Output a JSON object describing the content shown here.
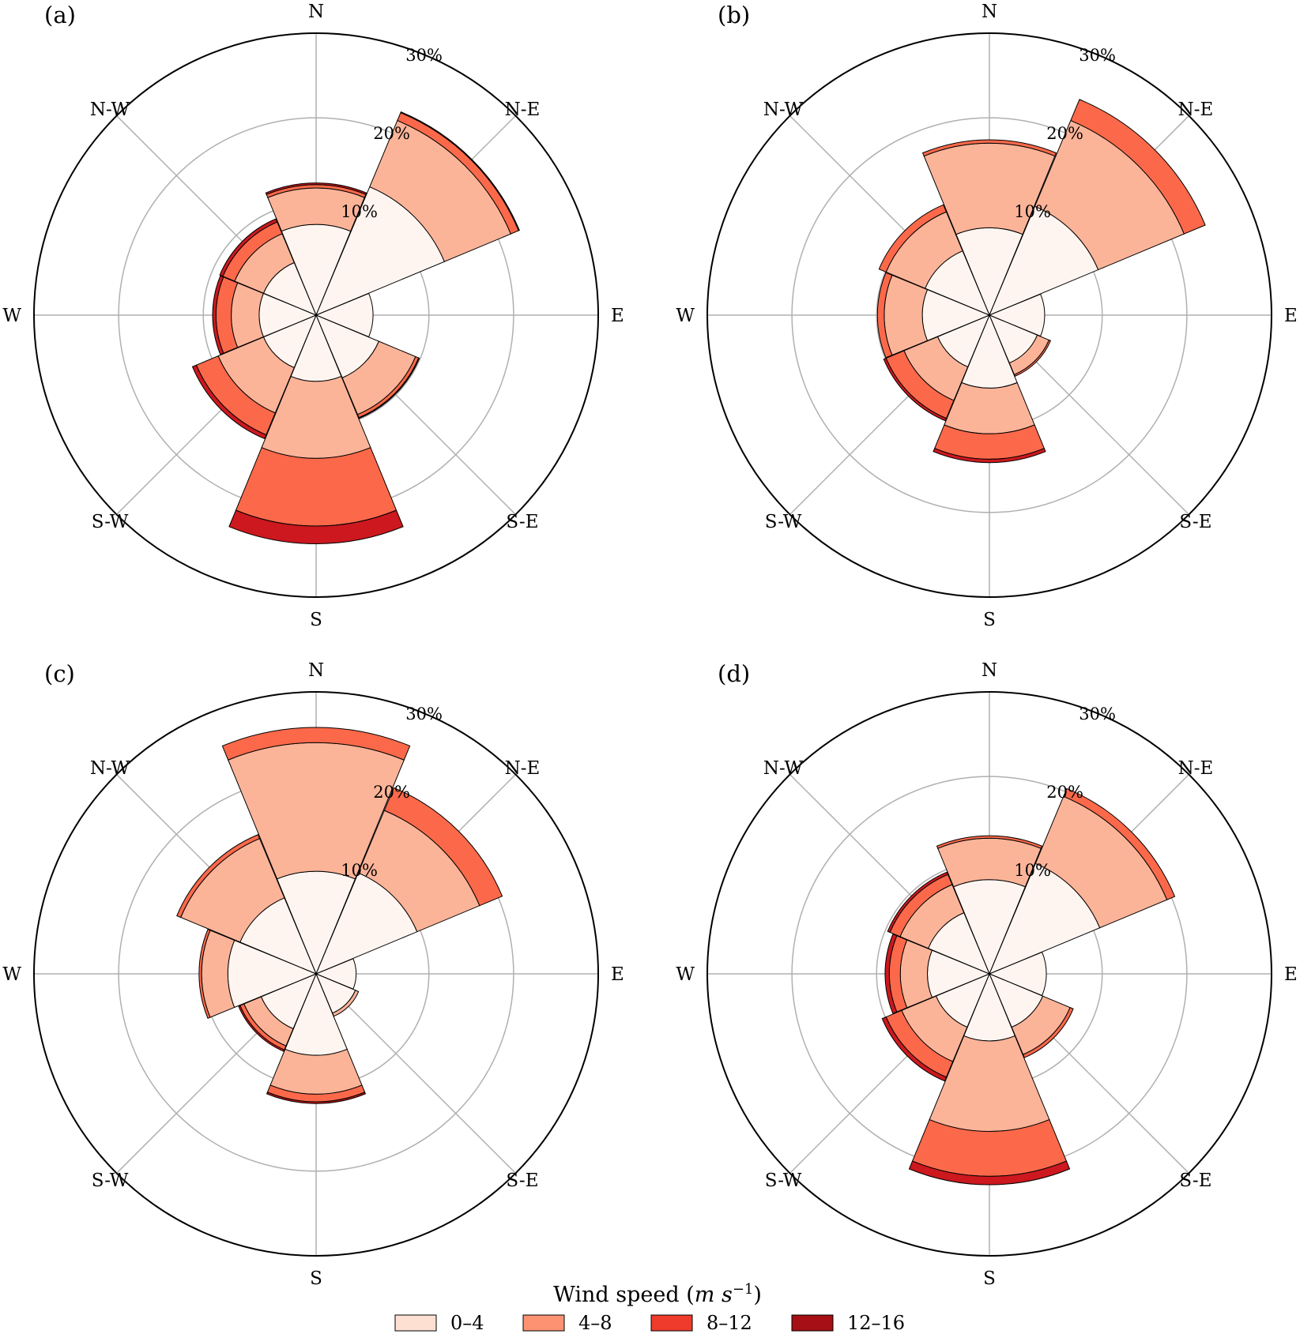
{
  "legend": {
    "title_prefix": "Wind speed (",
    "title_unit": "m s",
    "title_exp": "−1",
    "title_suffix": ")",
    "placement": "bottom-center"
  },
  "chart_data": [
    {
      "type": "windrose",
      "panel_label": "(a)",
      "directions": [
        "N",
        "N-E",
        "E",
        "S-E",
        "S",
        "S-W",
        "W",
        "N-W"
      ],
      "rlim": [
        0,
        30
      ],
      "rticks": [
        10,
        20,
        30
      ],
      "rtick_labels": [
        "10%",
        "20%",
        "30%"
      ],
      "grid": true,
      "series": [
        {
          "name": "0–4",
          "color": "#fff5f0",
          "values": [
            7.4,
            13.1,
            3.4,
            4.7,
            4.5,
            3.4,
            3.4,
            3.4
          ]
        },
        {
          "name": "4–8",
          "color": "#fcb499",
          "values": [
            4.3,
            8.5,
            0,
            4.7,
            9.1,
            5.8,
            3.3,
            3.7
          ]
        },
        {
          "name": "8–12",
          "color": "#fb694a",
          "values": [
            0.4,
            1.0,
            0,
            0.4,
            8.0,
            2.8,
            1.8,
            1.5
          ]
        },
        {
          "name": "12–16",
          "color": "#cc181e",
          "values": [
            0.2,
            0.1,
            0,
            0.1,
            2.1,
            0.5,
            0.4,
            0.4
          ]
        }
      ]
    },
    {
      "type": "windrose",
      "panel_label": "(b)",
      "directions": [
        "N",
        "N-E",
        "E",
        "S-E",
        "S",
        "S-W",
        "W",
        "N-W"
      ],
      "rlim": [
        0,
        30
      ],
      "rticks": [
        10,
        20,
        30
      ],
      "rtick_labels": [
        "10%",
        "20%",
        "30%"
      ],
      "grid": true,
      "series": [
        {
          "name": "0–4",
          "color": "#fff5f0",
          "values": [
            7.0,
            10.6,
            3.2,
            2.8,
            5.3,
            3.3,
            4.6,
            4.9
          ]
        },
        {
          "name": "4–8",
          "color": "#fcb499",
          "values": [
            10.0,
            11.0,
            0,
            1.5,
            5.4,
            4.3,
            4.5,
            5.0
          ]
        },
        {
          "name": "8–12",
          "color": "#fb694a",
          "values": [
            0.4,
            2.7,
            0,
            0.2,
            3.0,
            2.3,
            0.8,
            0.9
          ]
        },
        {
          "name": "12–16",
          "color": "#cc181e",
          "values": [
            0,
            0,
            0,
            0,
            0.4,
            0.3,
            0,
            0
          ]
        }
      ]
    },
    {
      "type": "windrose",
      "panel_label": "(c)",
      "directions": [
        "N",
        "N-E",
        "E",
        "S-E",
        "S",
        "S-W",
        "W",
        "N-W"
      ],
      "rlim": [
        0,
        30
      ],
      "rticks": [
        10,
        20,
        30
      ],
      "rtick_labels": [
        "10%",
        "20%",
        "30%"
      ],
      "grid": true,
      "series": [
        {
          "name": "0–4",
          "color": "#fff5f0",
          "values": [
            8.8,
            9.6,
            1.4,
            1.7,
            6.3,
            3.7,
            7.1,
            6.4
          ]
        },
        {
          "name": "4–8",
          "color": "#fcb499",
          "values": [
            15.2,
            8.0,
            0,
            0.4,
            4.6,
            2.2,
            3.1,
            7.6
          ]
        },
        {
          "name": "8–12",
          "color": "#fb694a",
          "values": [
            1.8,
            2.9,
            0,
            0,
            0.9,
            0.5,
            0.3,
            0.5
          ]
        },
        {
          "name": "12–16",
          "color": "#cc181e",
          "values": [
            0,
            0,
            0,
            0,
            0.2,
            0.2,
            0,
            0
          ]
        }
      ]
    },
    {
      "type": "windrose",
      "panel_label": "(d)",
      "directions": [
        "N",
        "N-E",
        "E",
        "S-E",
        "S",
        "S-W",
        "W",
        "N-W"
      ],
      "rlim": [
        0,
        30
      ],
      "rticks": [
        10,
        20,
        30
      ],
      "rtick_labels": [
        "10%",
        "20%",
        "30%"
      ],
      "grid": true,
      "series": [
        {
          "name": "0–4",
          "color": "#fff5f0",
          "values": [
            7.8,
            10.8,
            3.4,
            3.5,
            4.6,
            3.5,
            4.0,
            4.5
          ]
        },
        {
          "name": "4–8",
          "color": "#fcb499",
          "values": [
            4.9,
            8.6,
            0,
            3.5,
            10.7,
            4.4,
            3.2,
            3.6
          ]
        },
        {
          "name": "8–12",
          "color": "#fb694a",
          "values": [
            0.3,
            1.0,
            0,
            0.4,
            5.3,
            2.0,
            1.3,
            1.3
          ]
        },
        {
          "name": "12–16",
          "color": "#cc181e",
          "values": [
            0,
            0,
            0,
            0,
            1.0,
            0.5,
            0.5,
            0.3
          ]
        }
      ]
    }
  ]
}
